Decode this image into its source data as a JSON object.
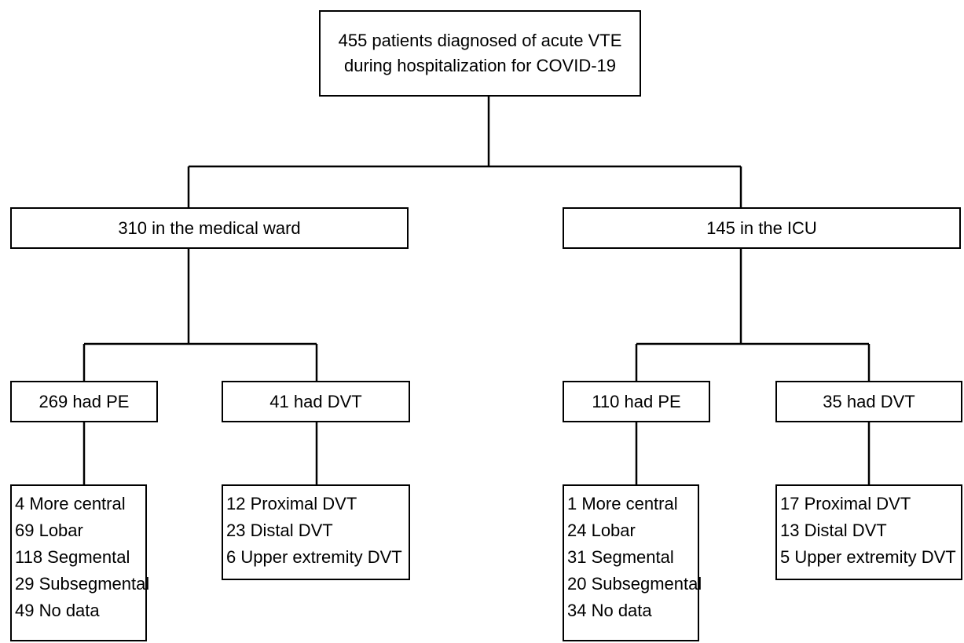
{
  "root": {
    "line1": "455 patients diagnosed of acute VTE",
    "line2": "during hospitalization for COVID-19"
  },
  "ward": {
    "label": "310 in the medical ward",
    "pe": {
      "label": "269 had PE",
      "items": [
        "4 More central",
        "69 Lobar",
        "118 Segmental",
        "29 Subsegmental",
        "49 No data"
      ]
    },
    "dvt": {
      "label": "41 had DVT",
      "items": [
        "12 Proximal DVT",
        "23 Distal DVT",
        "6 Upper extremity DVT"
      ]
    }
  },
  "icu": {
    "label": "145 in the ICU",
    "pe": {
      "label": "110 had PE",
      "items": [
        "1 More central",
        "24 Lobar",
        "31 Segmental",
        "20 Subsegmental",
        "34 No data"
      ]
    },
    "dvt": {
      "label": "35 had DVT",
      "items": [
        "17 Proximal DVT",
        "13 Distal DVT",
        "5 Upper extremity DVT"
      ]
    }
  },
  "colors": {
    "line": "#000000",
    "box_fill": "#ffffff"
  }
}
